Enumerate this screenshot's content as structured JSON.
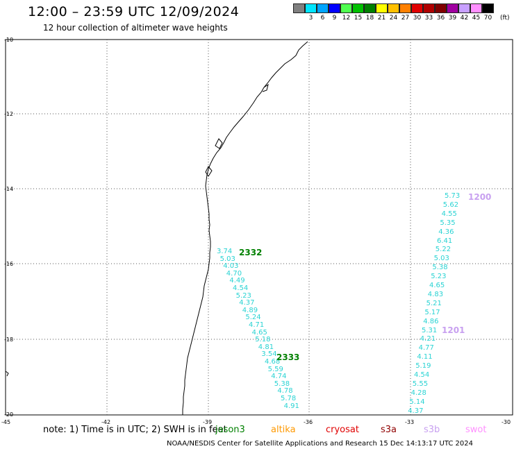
{
  "header": {
    "title": "12:00 – 23:59 UTC 12/09/2024",
    "subtitle": "12 hour collection of altimeter wave heights"
  },
  "color_scale": {
    "labels": [
      "3",
      "6",
      "9",
      "12",
      "15",
      "18",
      "21",
      "24",
      "27",
      "30",
      "33",
      "36",
      "39",
      "42",
      "45",
      "70"
    ],
    "unit": "(ft)",
    "colors": [
      "#808080",
      "#00e5ff",
      "#00a5ff",
      "#0000ff",
      "#50ff50",
      "#00c000",
      "#008000",
      "#ffff00",
      "#ffc000",
      "#ff8000",
      "#e00000",
      "#b00000",
      "#800000",
      "#a000a0",
      "#c8a0ff",
      "#ff90ff",
      "#000000"
    ]
  },
  "axes": {
    "lat_labels": [
      "-10",
      "-12",
      "-14",
      "-16",
      "-18",
      "-20"
    ],
    "lon_labels": [
      "-45",
      "-42",
      "-39",
      "-36",
      "-33",
      "-30"
    ]
  },
  "pass_labels": {
    "p2332": {
      "text": "2332",
      "color": "#008000"
    },
    "p2333": {
      "text": "2333",
      "color": "#008000"
    },
    "p1200": {
      "text": "1200",
      "color": "#c8a0f0"
    },
    "p1201": {
      "text": "1201",
      "color": "#c8a0f0"
    }
  },
  "track_a_values": [
    "3.74",
    "5.03",
    "4.03",
    "4.70",
    "4.49",
    "4.54",
    "5.23",
    "4.37",
    "4.89",
    "5.24",
    "4.71",
    "4.65",
    "5.18",
    "4.81",
    "3.54",
    "4.68",
    "5.59",
    "4.74",
    "5.38",
    "4.78",
    "5.78",
    "4.91"
  ],
  "track_b_values": [
    "5.73",
    "5.62",
    "4.55",
    "5.35",
    "4.36",
    "6.41",
    "5.22",
    "5.03",
    "5.38",
    "5.23",
    "4.65",
    "4.83",
    "5.21",
    "5.17",
    "4.86",
    "5.31",
    "4.21",
    "4.77",
    "4.11",
    "5.19",
    "4.54",
    "5.55",
    "4.28",
    "5.14",
    "4.37"
  ],
  "footer": {
    "note": "note:  1) Time is in UTC; 2) SWH is in feet",
    "satellites": [
      {
        "name": "jason3",
        "color": "#008000"
      },
      {
        "name": "altika",
        "color": "#ff9900"
      },
      {
        "name": "cryosat",
        "color": "#e00000"
      },
      {
        "name": "s3a",
        "color": "#900000"
      },
      {
        "name": "s3b",
        "color": "#c8a0f0"
      },
      {
        "name": "swot",
        "color": "#ff90ff"
      }
    ],
    "credit": "NOAA/NESDIS Center for Satellite Applications and Research    15 Dec 14:13:17 UTC 2024"
  }
}
